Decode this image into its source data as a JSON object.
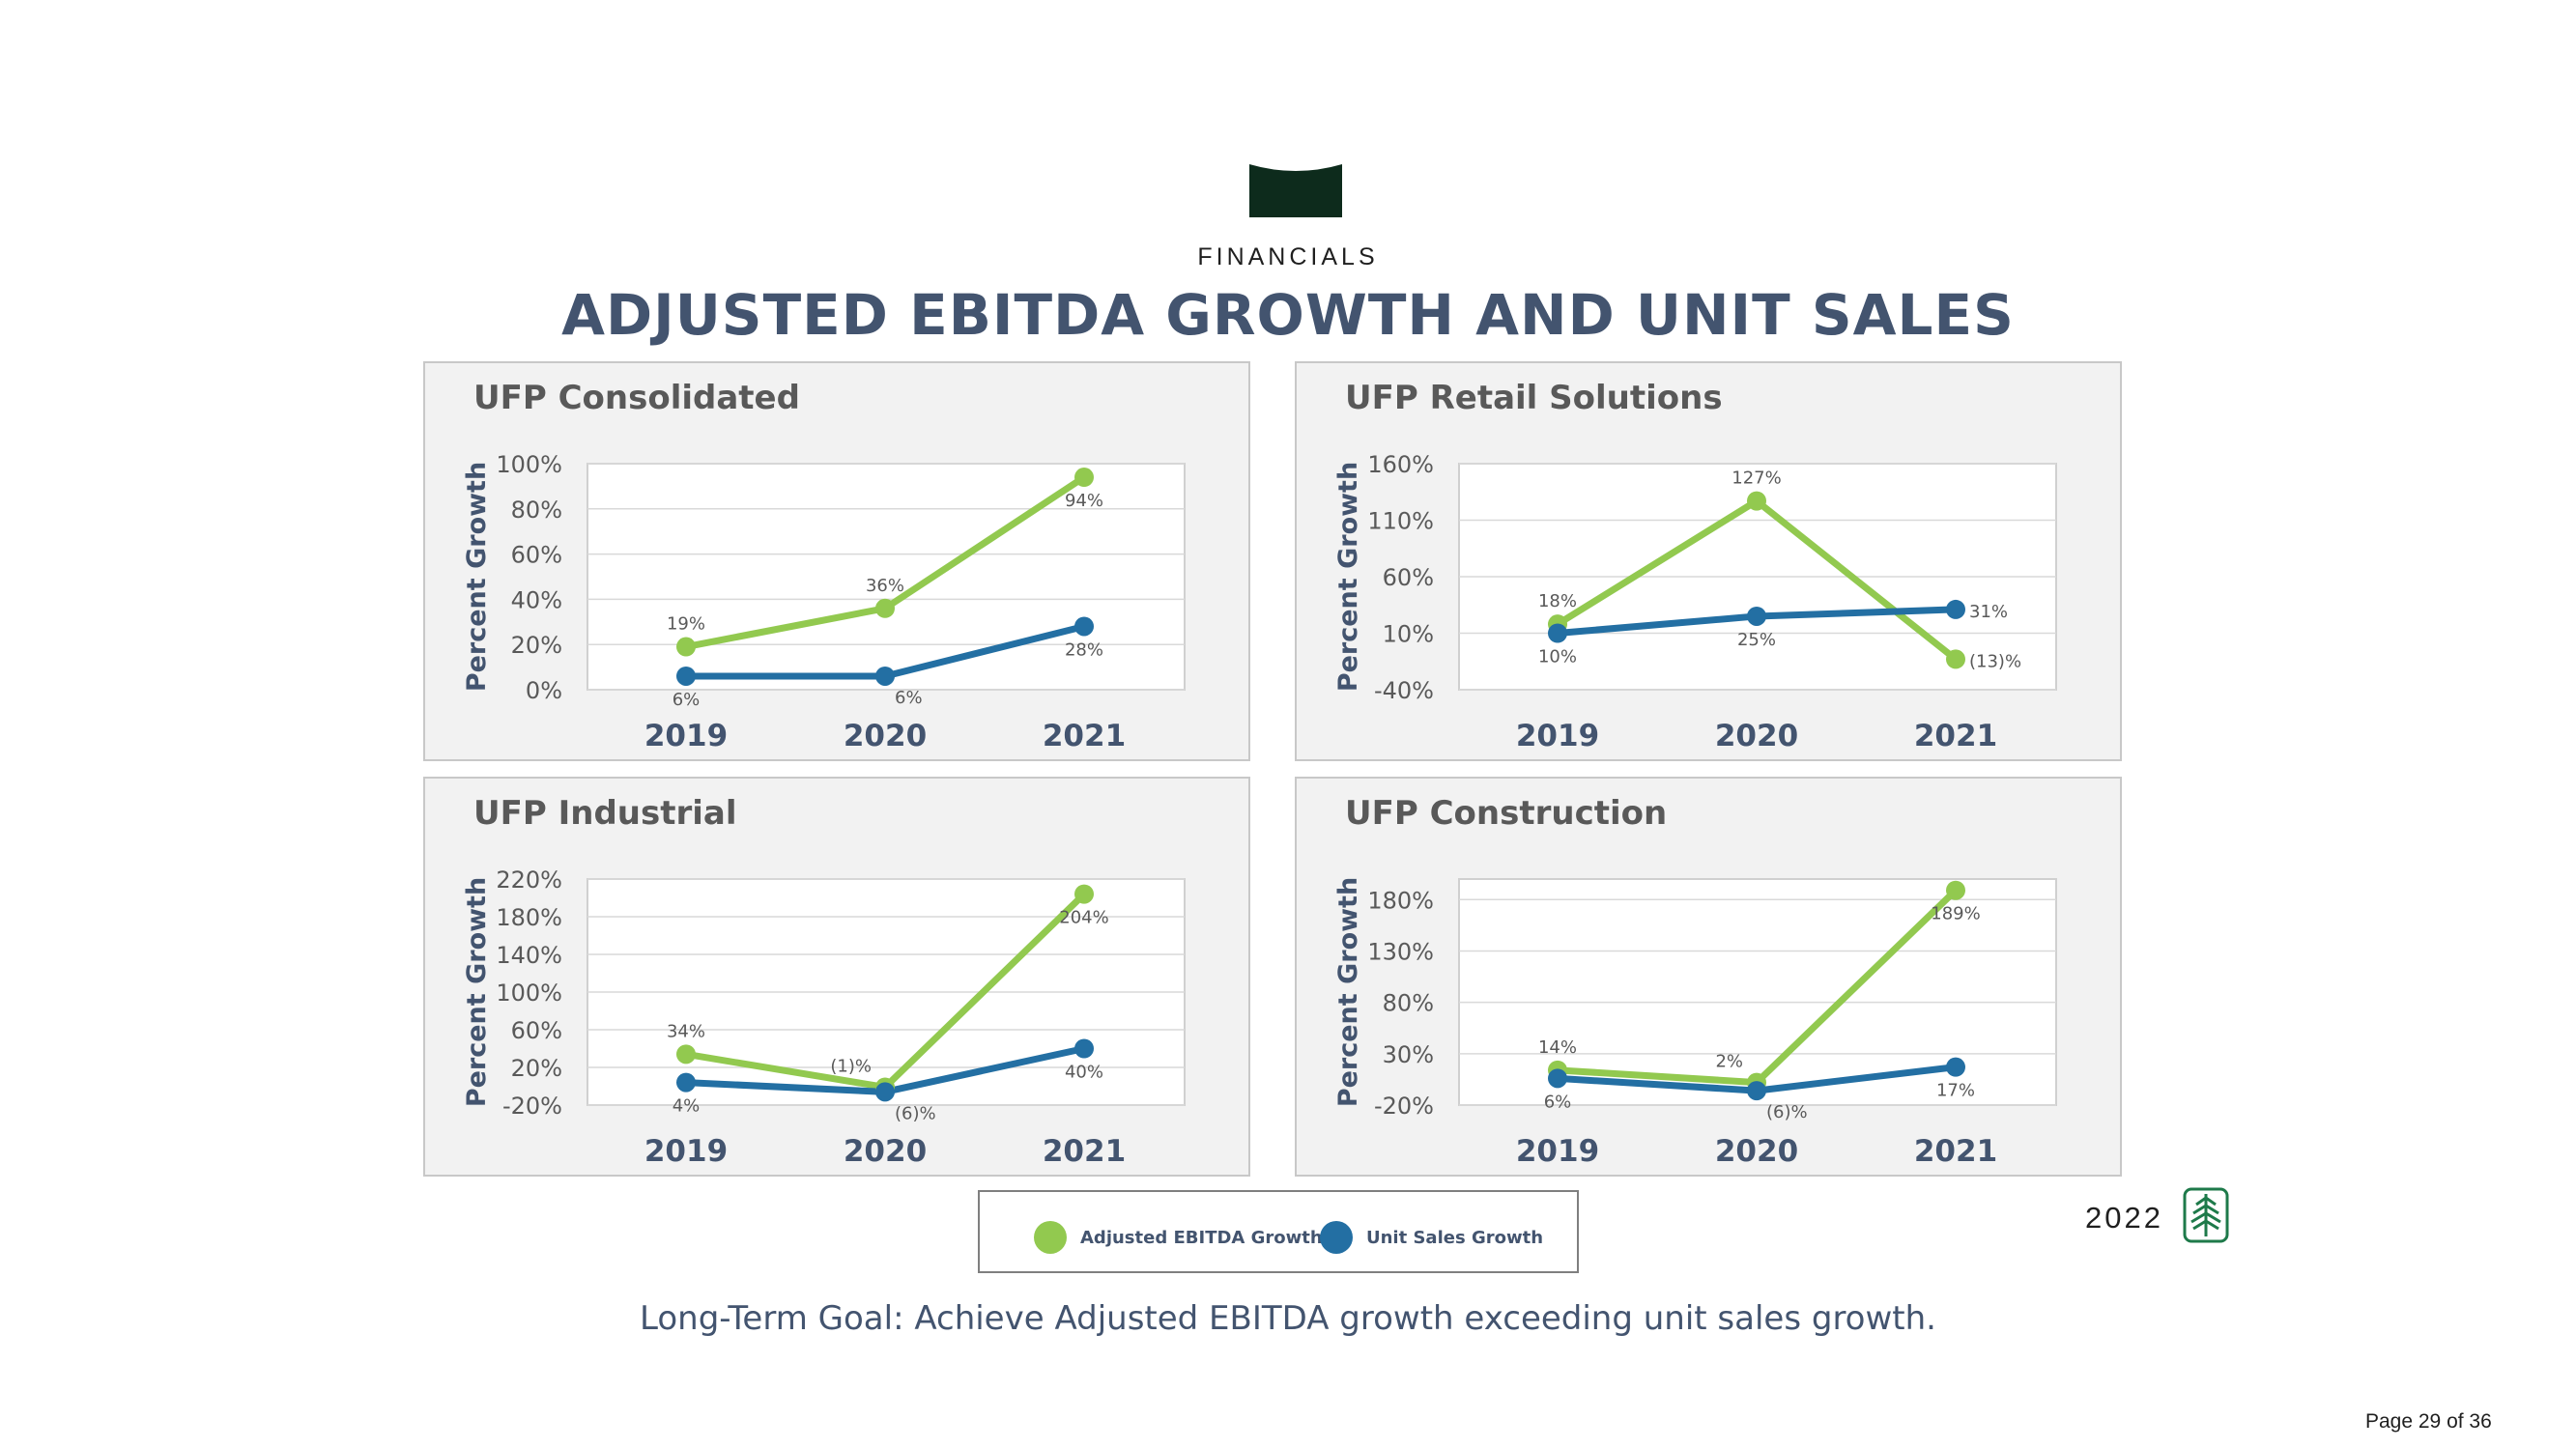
{
  "header": {
    "section": "FINANCIALS",
    "title": "ADJUSTED EBITDA GROWTH AND UNIT SALES"
  },
  "colors": {
    "ebitda": "#92c94f",
    "unit_sales": "#236fa3",
    "title": "#43546f",
    "banner": "#0d2b1c"
  },
  "chart_data": [
    {
      "type": "line",
      "title": "UFP Consolidated",
      "ylabel": "Percent Growth",
      "categories": [
        "2019",
        "2020",
        "2021"
      ],
      "yticks": [
        0,
        20,
        40,
        60,
        80,
        100
      ],
      "ytick_labels": [
        "0%",
        "20%",
        "40%",
        "60%",
        "80%",
        "100%"
      ],
      "ylim": [
        0,
        100
      ],
      "series": [
        {
          "name": "Adjusted EBITDA Growth",
          "values": [
            19,
            36,
            94
          ],
          "labels": [
            "19%",
            "36%",
            "94%"
          ],
          "label_pos": [
            "above",
            "above",
            "below"
          ]
        },
        {
          "name": "Unit Sales Growth",
          "values": [
            6,
            6,
            28
          ],
          "labels": [
            "6%",
            "6%",
            "28%"
          ],
          "label_pos": [
            "below",
            "below-right",
            "below"
          ]
        }
      ]
    },
    {
      "type": "line",
      "title": "UFP Retail Solutions",
      "ylabel": "Percent Growth",
      "categories": [
        "2019",
        "2020",
        "2021"
      ],
      "yticks": [
        -40,
        10,
        60,
        110,
        160
      ],
      "ytick_labels": [
        "-40%",
        "10%",
        "60%",
        "110%",
        "160%"
      ],
      "ylim": [
        -40,
        160
      ],
      "series": [
        {
          "name": "Adjusted EBITDA Growth",
          "values": [
            18,
            127,
            -13
          ],
          "labels": [
            "18%",
            "127%",
            "(13)%"
          ],
          "label_pos": [
            "above",
            "above",
            "right"
          ]
        },
        {
          "name": "Unit Sales Growth",
          "values": [
            10,
            25,
            31
          ],
          "labels": [
            "10%",
            "25%",
            "31%"
          ],
          "label_pos": [
            "below",
            "below",
            "right"
          ]
        }
      ]
    },
    {
      "type": "line",
      "title": "UFP Industrial",
      "ylabel": "Percent Growth",
      "categories": [
        "2019",
        "2020",
        "2021"
      ],
      "yticks": [
        -20,
        20,
        60,
        100,
        140,
        180,
        220
      ],
      "ytick_labels": [
        "-20%",
        "20%",
        "60%",
        "100%",
        "140%",
        "180%",
        "220%"
      ],
      "ylim": [
        -20,
        220
      ],
      "series": [
        {
          "name": "Adjusted EBITDA Growth",
          "values": [
            34,
            -1,
            204
          ],
          "labels": [
            "34%",
            "(1)%",
            "204%"
          ],
          "label_pos": [
            "above",
            "above-left",
            "below"
          ]
        },
        {
          "name": "Unit Sales Growth",
          "values": [
            4,
            -6,
            40
          ],
          "labels": [
            "4%",
            "(6)%",
            "40%"
          ],
          "label_pos": [
            "below",
            "below-right",
            "below"
          ]
        }
      ]
    },
    {
      "type": "line",
      "title": "UFP Construction",
      "ylabel": "Percent Growth",
      "categories": [
        "2019",
        "2020",
        "2021"
      ],
      "yticks": [
        -20,
        30,
        80,
        130,
        180
      ],
      "ytick_labels": [
        "-20%",
        "30%",
        "80%",
        "130%",
        "180%"
      ],
      "ylim": [
        -20,
        200
      ],
      "series": [
        {
          "name": "Adjusted EBITDA Growth",
          "values": [
            14,
            2,
            189
          ],
          "labels": [
            "14%",
            "2%",
            "189%"
          ],
          "label_pos": [
            "above",
            "above-left",
            "below"
          ]
        },
        {
          "name": "Unit Sales Growth",
          "values": [
            6,
            -6,
            17
          ],
          "labels": [
            "6%",
            "(6)%",
            "17%"
          ],
          "label_pos": [
            "below",
            "below-right",
            "below"
          ]
        }
      ]
    }
  ],
  "legend": {
    "ebitda_label": "Adjusted EBITDA Growth",
    "unit_sales_label": "Unit Sales Growth"
  },
  "footer": {
    "goal": "Long-Term Goal: Achieve Adjusted EBITDA growth exceeding unit sales growth.",
    "year": "2022",
    "page": "Page 29 of 36"
  }
}
